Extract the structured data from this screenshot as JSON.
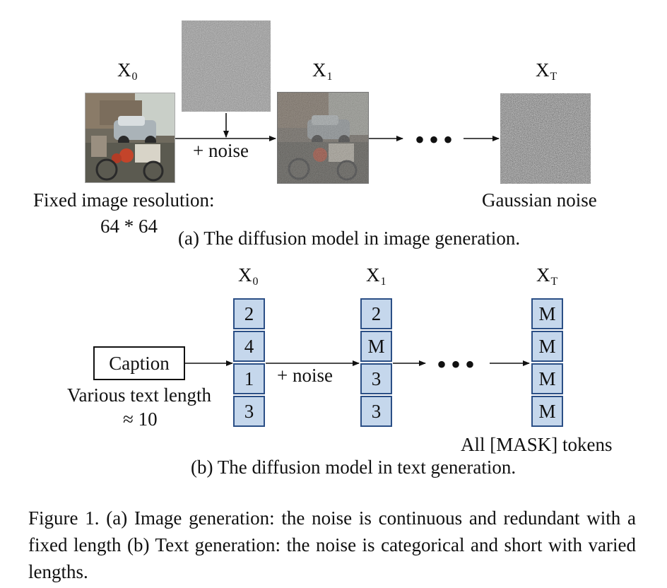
{
  "panel_a": {
    "x0_label": "X",
    "x0_sub": "0",
    "x1_label": "X",
    "x1_sub": "1",
    "xt_label": "X",
    "xt_sub": "T",
    "plus_noise": "+ noise",
    "dots": "•••",
    "fixed_res_line1": "Fixed image resolution:",
    "fixed_res_line2": "64 * 64",
    "gaussian_noise": "Gaussian noise",
    "subcaption": "(a) The diffusion model in image generation."
  },
  "panel_b": {
    "x0_label": "X",
    "x0_sub": "0",
    "x1_label": "X",
    "x1_sub": "1",
    "xt_label": "X",
    "xt_sub": "T",
    "caption_box": "Caption",
    "various_line1": "Various text length",
    "various_line2": "≈ 10",
    "plus_noise": "+ noise",
    "dots": "•••",
    "x0_tokens": [
      "2",
      "4",
      "1",
      "3"
    ],
    "x1_tokens": [
      "2",
      "M",
      "3",
      "3"
    ],
    "xt_tokens": [
      "M",
      "M",
      "M",
      "M"
    ],
    "all_mask": "All [MASK] tokens",
    "subcaption": "(b) The diffusion model in text generation."
  },
  "figure_caption": "Figure 1. (a) Image generation: the noise is continuous and redundant with a fixed length (b) Text generation: the noise is categorical and short with varied lengths.",
  "colors": {
    "token_fill": "#c5d7ec",
    "token_border": "#2b4f86"
  }
}
